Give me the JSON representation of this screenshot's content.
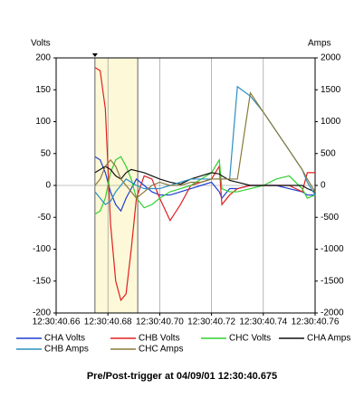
{
  "chart_data": {
    "type": "line",
    "y_label": "Volts",
    "y2_label": "Amps",
    "footer": "Pre/Post-trigger at 04/09/01 12:30:40.675",
    "x": [
      40.675,
      40.677,
      40.679,
      40.681,
      40.683,
      40.685,
      40.687,
      40.689,
      40.691,
      40.694,
      40.697,
      40.7,
      40.704,
      40.708,
      40.712,
      40.716,
      40.72,
      40.723,
      40.724,
      40.727,
      40.73,
      40.735,
      40.74,
      40.745,
      40.75,
      40.755,
      40.757,
      40.76
    ],
    "xlim": [
      40.66,
      40.76
    ],
    "xticks": [
      {
        "value": 40.66,
        "label": "12:30:40.66"
      },
      {
        "value": 40.68,
        "label": "12:30:40.68"
      },
      {
        "value": 40.7,
        "label": "12:30:40.70"
      },
      {
        "value": 40.72,
        "label": "12:30:40.72"
      },
      {
        "value": 40.74,
        "label": "12:30:40.74"
      },
      {
        "value": 40.76,
        "label": "12:30:40.76"
      }
    ],
    "ylim": [
      -200,
      200
    ],
    "yticks": [
      200,
      150,
      100,
      50,
      0,
      -50,
      -100,
      -150,
      -200
    ],
    "y2lim": [
      -2000,
      2000
    ],
    "y2ticks": [
      2000,
      1500,
      1000,
      500,
      0,
      -500,
      -1000,
      -1500,
      -2000
    ],
    "grid": true,
    "shaded_region": {
      "x": [
        40.675,
        40.6915
      ],
      "color": "#fdf8d8"
    },
    "series": [
      {
        "name": "CHA Volts",
        "color": "#1f3fd0",
        "values": [
          45,
          40,
          20,
          -10,
          -30,
          -40,
          -20,
          -5,
          10,
          0,
          -10,
          -15,
          -15,
          -10,
          -5,
          0,
          5,
          -10,
          -20,
          -5,
          -5,
          0,
          0,
          0,
          -5,
          -10,
          -15,
          -15
        ]
      },
      {
        "name": "CHB Volts",
        "color": "#e02020",
        "values": [
          185,
          180,
          120,
          -60,
          -150,
          -180,
          -170,
          -100,
          -20,
          15,
          10,
          -20,
          -55,
          -30,
          0,
          5,
          10,
          30,
          -30,
          -15,
          -5,
          0,
          0,
          0,
          0,
          -10,
          20,
          20
        ]
      },
      {
        "name": "CHC Volts",
        "color": "#30d030",
        "values": [
          -45,
          -40,
          -20,
          20,
          40,
          45,
          30,
          10,
          -20,
          -35,
          -30,
          -20,
          -10,
          -5,
          0,
          10,
          20,
          40,
          -5,
          -10,
          -10,
          -5,
          0,
          10,
          15,
          -5,
          -20,
          -15
        ]
      },
      {
        "name": "CHA Amps",
        "color": "#101010",
        "axis": "y2",
        "values": [
          200,
          250,
          300,
          250,
          150,
          100,
          200,
          250,
          230,
          200,
          150,
          100,
          50,
          20,
          100,
          150,
          200,
          180,
          150,
          80,
          50,
          0,
          0,
          0,
          0,
          0,
          -50,
          -100
        ]
      },
      {
        "name": "CHB Amps",
        "color": "#2a8fbf",
        "axis": "y2",
        "values": [
          -100,
          -200,
          -300,
          -250,
          -100,
          0,
          100,
          50,
          0,
          -50,
          -50,
          -50,
          0,
          50,
          100,
          100,
          100,
          100,
          100,
          100,
          1550,
          1400,
          1150,
          850,
          550,
          250,
          50,
          -150
        ]
      },
      {
        "name": "CHC Amps",
        "color": "#8a7a3a",
        "axis": "y2",
        "values": [
          0,
          100,
          300,
          400,
          300,
          100,
          0,
          -100,
          -200,
          -100,
          0,
          50,
          0,
          0,
          50,
          50,
          100,
          100,
          100,
          100,
          100,
          1450,
          1150,
          850,
          550,
          250,
          100,
          -100
        ]
      }
    ]
  }
}
